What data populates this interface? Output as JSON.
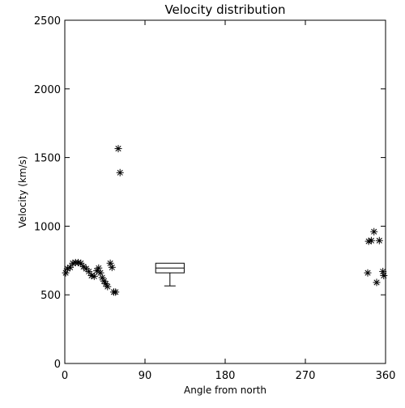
{
  "chart_data": {
    "type": "scatter",
    "title": "Velocity distribution",
    "xlabel": "Angle from north",
    "ylabel": "Velocity (km/s)",
    "xlim": [
      0,
      360
    ],
    "ylim": [
      0,
      2500
    ],
    "xticks": [
      0,
      90,
      180,
      270,
      360
    ],
    "yticks": [
      0,
      500,
      1000,
      1500,
      2000,
      2500
    ],
    "grid": false,
    "legend": "none",
    "marker": "asterisk",
    "color": "#000000",
    "points": [
      {
        "x": 1,
        "y": 660
      },
      {
        "x": 3,
        "y": 690
      },
      {
        "x": 6,
        "y": 700
      },
      {
        "x": 9,
        "y": 730
      },
      {
        "x": 12,
        "y": 735
      },
      {
        "x": 15,
        "y": 735
      },
      {
        "x": 18,
        "y": 730
      },
      {
        "x": 21,
        "y": 705
      },
      {
        "x": 24,
        "y": 690
      },
      {
        "x": 27,
        "y": 670
      },
      {
        "x": 30,
        "y": 640
      },
      {
        "x": 33,
        "y": 635
      },
      {
        "x": 36,
        "y": 675
      },
      {
        "x": 38,
        "y": 695
      },
      {
        "x": 40,
        "y": 660
      },
      {
        "x": 42,
        "y": 625
      },
      {
        "x": 44,
        "y": 600
      },
      {
        "x": 46,
        "y": 580
      },
      {
        "x": 48,
        "y": 560
      },
      {
        "x": 51,
        "y": 730
      },
      {
        "x": 53,
        "y": 700
      },
      {
        "x": 55,
        "y": 520
      },
      {
        "x": 57,
        "y": 520
      },
      {
        "x": 60,
        "y": 1565
      },
      {
        "x": 62,
        "y": 1390
      },
      {
        "x": 340,
        "y": 660
      },
      {
        "x": 341,
        "y": 890
      },
      {
        "x": 344,
        "y": 895
      },
      {
        "x": 347,
        "y": 960
      },
      {
        "x": 350,
        "y": 590
      },
      {
        "x": 353,
        "y": 895
      },
      {
        "x": 357,
        "y": 670
      },
      {
        "x": 358,
        "y": 640
      }
    ],
    "boxplot": {
      "x_left": 102,
      "x_right": 134,
      "whisker_low": 565,
      "q1": 660,
      "median": 695,
      "q3": 730,
      "whisker_high": 730
    }
  }
}
